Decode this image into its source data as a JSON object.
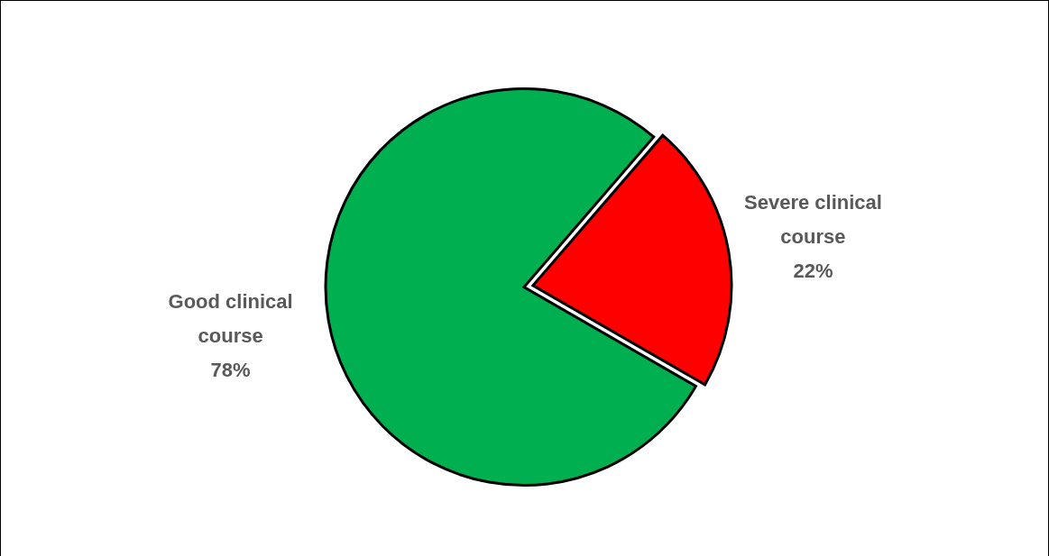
{
  "chart_data": {
    "type": "pie",
    "categories": [
      "Good clinical course",
      "Severe clinical course"
    ],
    "values": [
      78,
      22
    ],
    "colors": [
      "#00b050",
      "#ff0000"
    ],
    "value_labels": [
      "78%",
      "22%"
    ],
    "legend": false
  }
}
